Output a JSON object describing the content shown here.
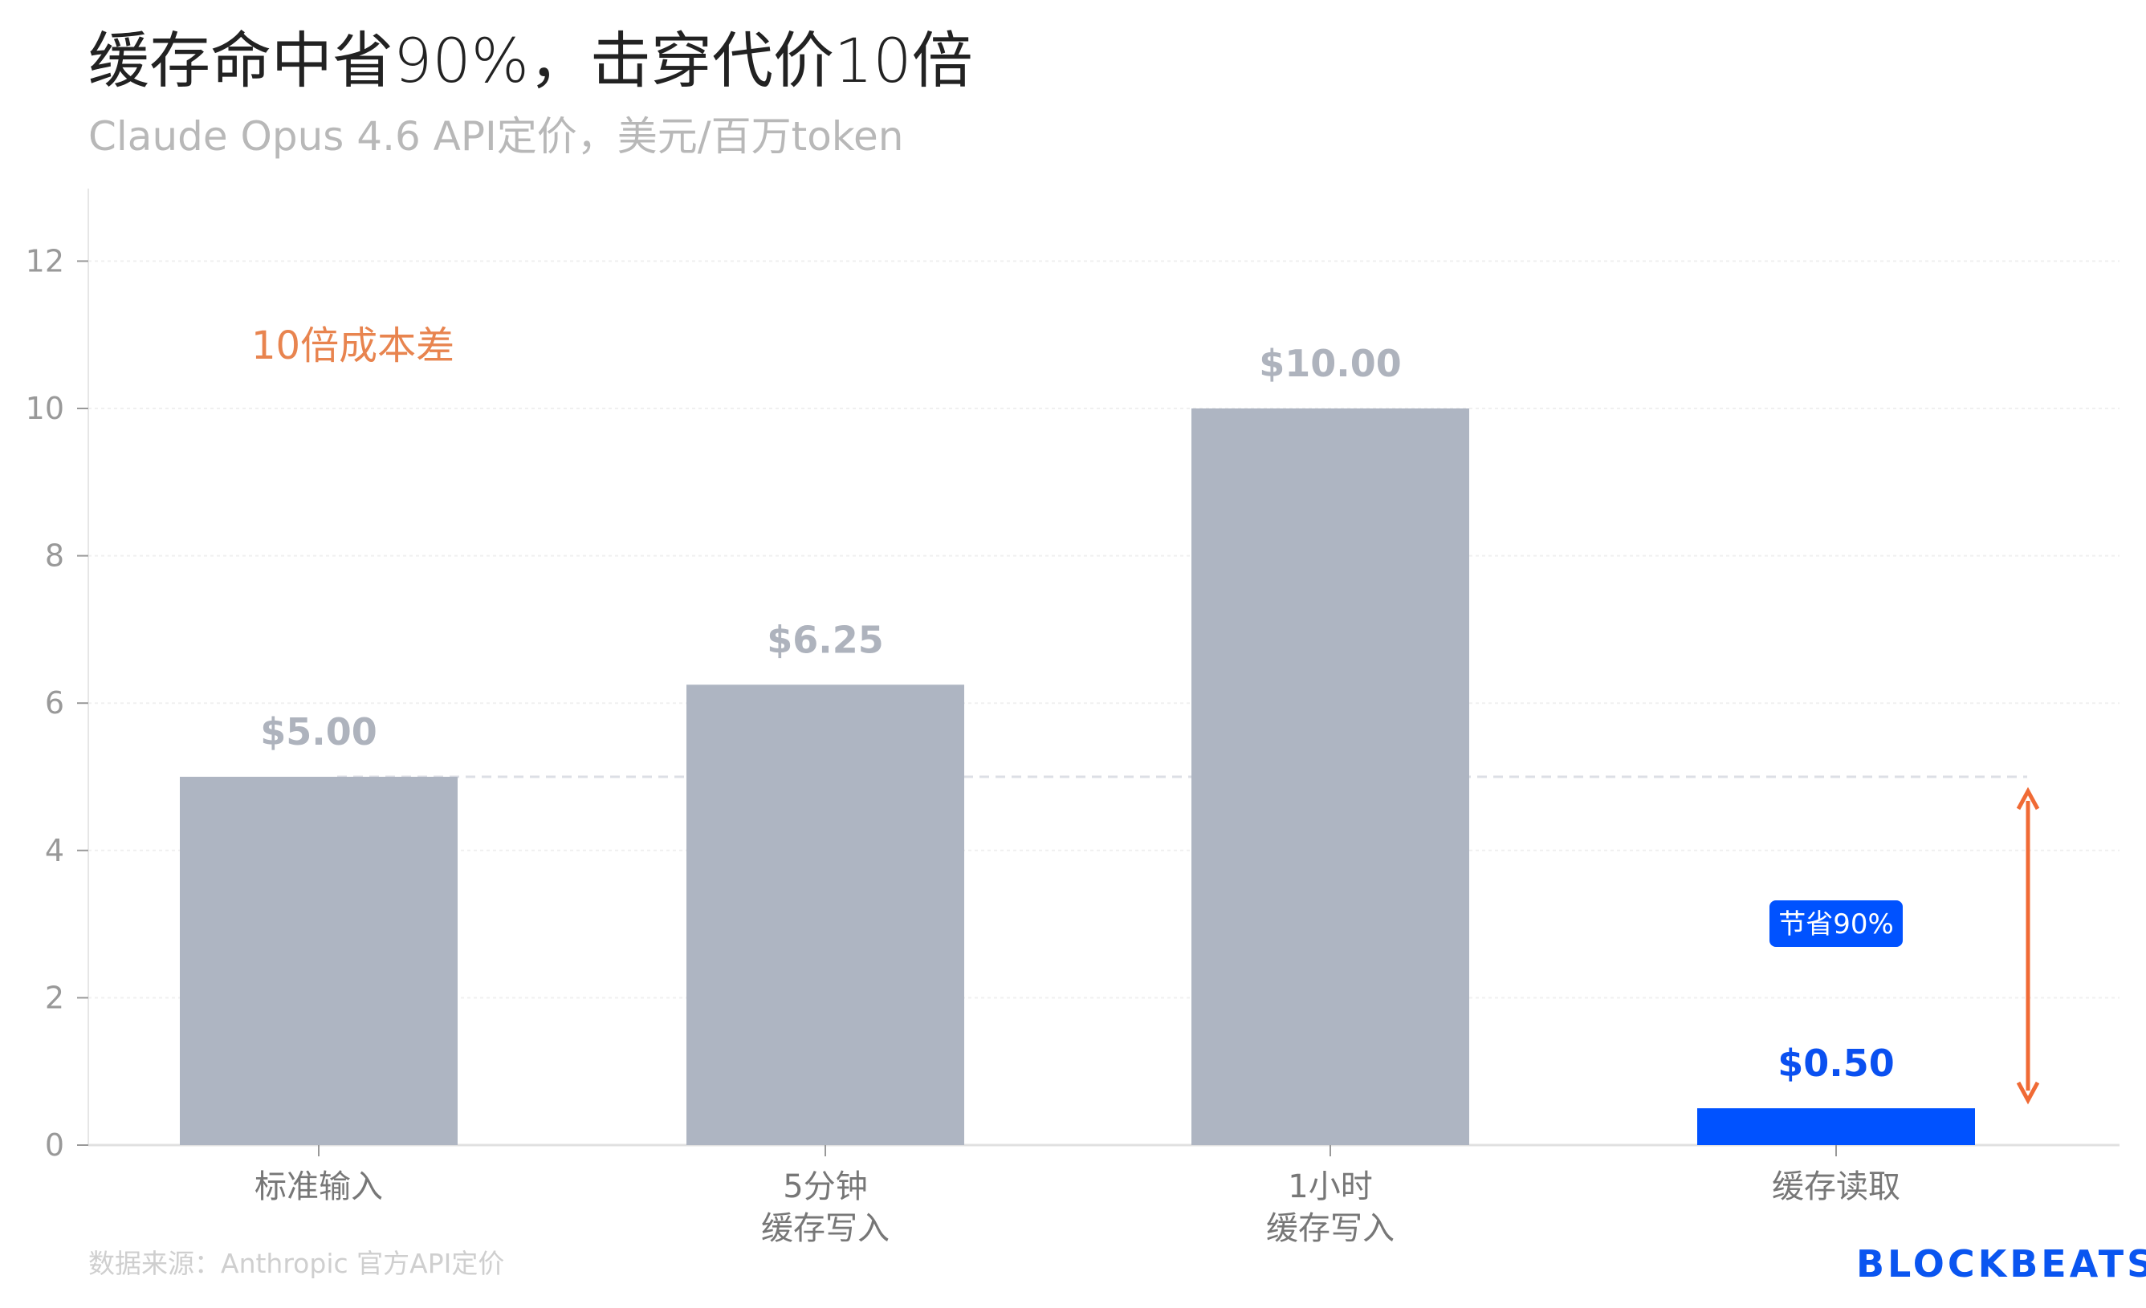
{
  "header": {
    "title": "缓存命中省90%，击穿代价10倍",
    "subtitle": "Claude Opus 4.6 API定价，美元/百万token"
  },
  "footer": {
    "source": "数据来源：Anthropic 官方API定价",
    "logo": "BLOCKBEATS"
  },
  "chart_data": {
    "type": "bar",
    "categories": [
      [
        "标准输入"
      ],
      [
        "5分钟",
        "缓存写入"
      ],
      [
        "1小时",
        "缓存写入"
      ],
      [
        "缓存读取"
      ]
    ],
    "values": [
      5.0,
      6.25,
      10.0,
      0.5
    ],
    "data_labels": [
      "$5.00",
      "$6.25",
      "$10.00",
      "$0.50"
    ],
    "ylim": [
      0,
      13
    ],
    "yticks": [
      0,
      2,
      4,
      6,
      8,
      10,
      12
    ],
    "grid": true,
    "reference_line": 5.0,
    "annotations": {
      "cost_gap": "10倍成本差",
      "savings_badge": "节省90%"
    },
    "colors": {
      "bar": "#aeb5c2",
      "highlight_bar": "#0052ff",
      "label": "#aeb3bd",
      "highlight_label": "#0a50f0",
      "annotation": "#f06a35",
      "annotation_text": "#e8844f"
    }
  }
}
